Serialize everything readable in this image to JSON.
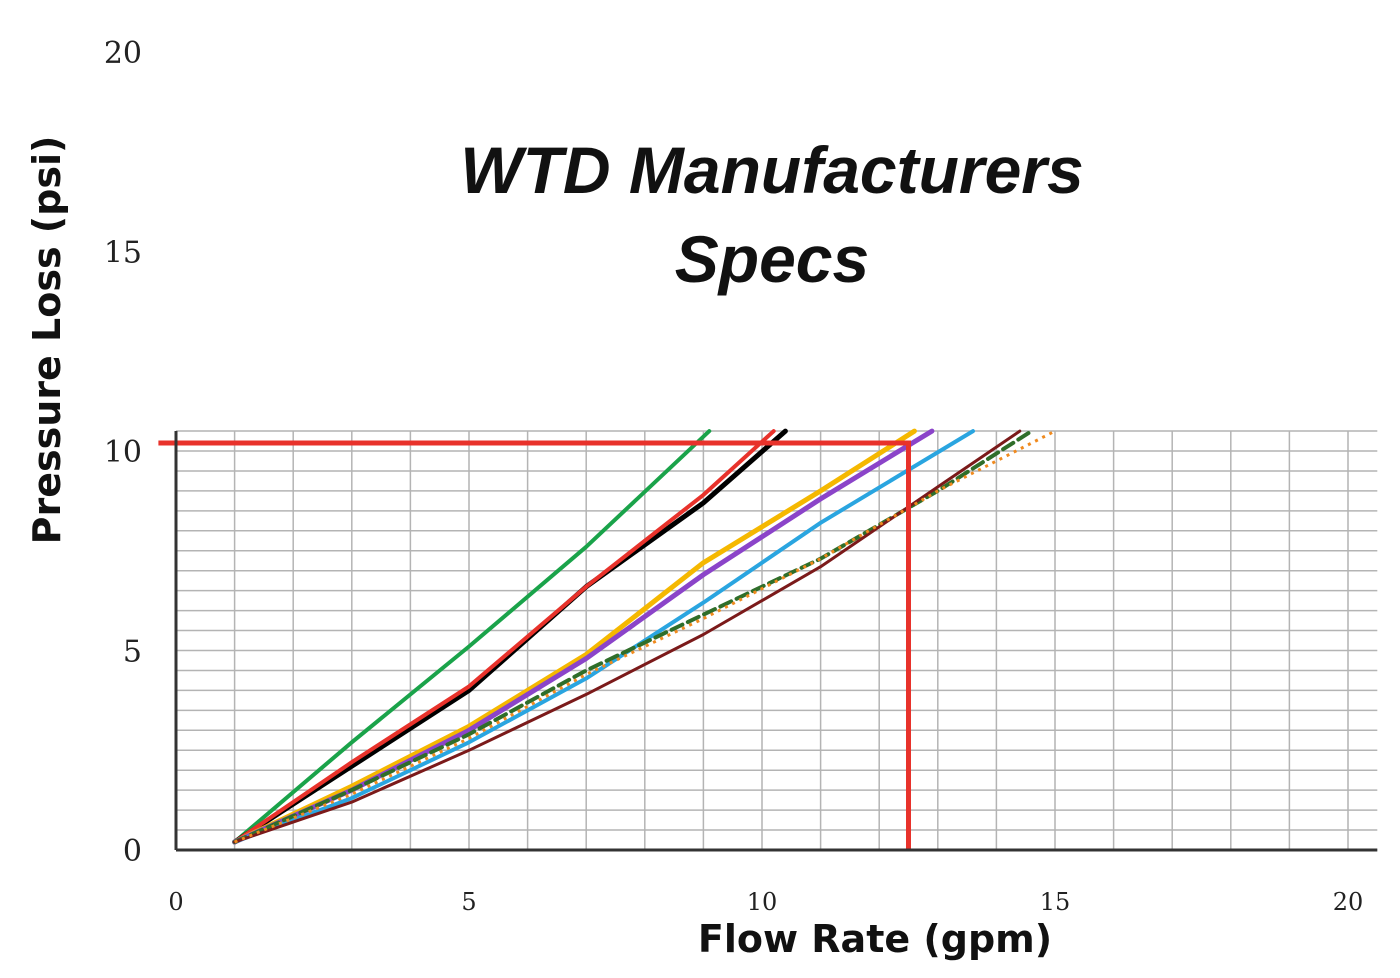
{
  "chart_data": {
    "type": "line",
    "title": [
      "WTD Manufacturers",
      "Specs"
    ],
    "xlabel": "Flow Rate (gpm)",
    "ylabel": "Pressure Loss (psi)",
    "xlim": [
      0,
      20
    ],
    "ylim": [
      0,
      20
    ],
    "grid_xlim": [
      0,
      20.5
    ],
    "grid_ylim": [
      0,
      10.5
    ],
    "x_ticks": [
      0,
      5,
      10,
      15,
      20
    ],
    "y_ticks": [
      0,
      5,
      10,
      15,
      20
    ],
    "x_minor_step": 1,
    "y_minor_step": 0.5,
    "grid": true,
    "series": [
      {
        "color": "#1aa34a",
        "width": 4,
        "style": "solid",
        "points": [
          [
            1,
            0.2
          ],
          [
            3,
            2.7
          ],
          [
            5,
            5.1
          ],
          [
            7,
            7.6
          ],
          [
            9.1,
            10.5
          ]
        ]
      },
      {
        "color": "#000000",
        "width": 5,
        "style": "solid",
        "points": [
          [
            1,
            0.2
          ],
          [
            3,
            2.1
          ],
          [
            5,
            4.0
          ],
          [
            7,
            6.6
          ],
          [
            9,
            8.7
          ],
          [
            10.4,
            10.5
          ]
        ]
      },
      {
        "color": "#e8322b",
        "width": 4,
        "style": "solid",
        "points": [
          [
            1,
            0.2
          ],
          [
            3,
            2.2
          ],
          [
            5,
            4.1
          ],
          [
            7,
            6.6
          ],
          [
            9,
            8.9
          ],
          [
            10.2,
            10.5
          ]
        ]
      },
      {
        "color": "#f5b800",
        "width": 5,
        "style": "solid",
        "points": [
          [
            1,
            0.2
          ],
          [
            3,
            1.6
          ],
          [
            5,
            3.1
          ],
          [
            7,
            4.9
          ],
          [
            9,
            7.2
          ],
          [
            11,
            9.0
          ],
          [
            12.6,
            10.5
          ]
        ]
      },
      {
        "color": "#8b44c9",
        "width": 5,
        "style": "solid",
        "points": [
          [
            1,
            0.2
          ],
          [
            3,
            1.5
          ],
          [
            5,
            3.0
          ],
          [
            7,
            4.8
          ],
          [
            9,
            6.9
          ],
          [
            11,
            8.8
          ],
          [
            12.9,
            10.5
          ]
        ]
      },
      {
        "color": "#2aa5e0",
        "width": 4,
        "style": "solid",
        "points": [
          [
            1,
            0.2
          ],
          [
            3,
            1.3
          ],
          [
            5,
            2.7
          ],
          [
            7,
            4.3
          ],
          [
            9,
            6.2
          ],
          [
            11,
            8.2
          ],
          [
            13.6,
            10.5
          ]
        ]
      },
      {
        "color": "#2f6e2a",
        "width": 4,
        "style": "dashed",
        "points": [
          [
            1,
            0.2
          ],
          [
            3,
            1.5
          ],
          [
            5,
            2.9
          ],
          [
            7,
            4.5
          ],
          [
            9,
            5.9
          ],
          [
            11,
            7.3
          ],
          [
            13,
            9.0
          ],
          [
            14.6,
            10.5
          ]
        ]
      },
      {
        "color": "#7b1a1a",
        "width": 3,
        "style": "solid",
        "points": [
          [
            1,
            0.2
          ],
          [
            3,
            1.2
          ],
          [
            5,
            2.5
          ],
          [
            7,
            3.9
          ],
          [
            9,
            5.4
          ],
          [
            11,
            7.1
          ],
          [
            13,
            9.1
          ],
          [
            14.4,
            10.5
          ]
        ]
      },
      {
        "color": "#f08a1e",
        "width": 3,
        "style": "dotted",
        "points": [
          [
            1,
            0.2
          ],
          [
            3,
            1.4
          ],
          [
            5,
            2.8
          ],
          [
            7,
            4.4
          ],
          [
            9,
            5.8
          ],
          [
            11,
            7.3
          ],
          [
            13,
            9.0
          ],
          [
            15,
            10.5
          ]
        ]
      }
    ],
    "annotations": [
      {
        "color": "#e8322b",
        "width": 5,
        "points": [
          [
            -0.3,
            10.2
          ],
          [
            12.5,
            10.2
          ],
          [
            12.5,
            0
          ]
        ]
      }
    ]
  }
}
